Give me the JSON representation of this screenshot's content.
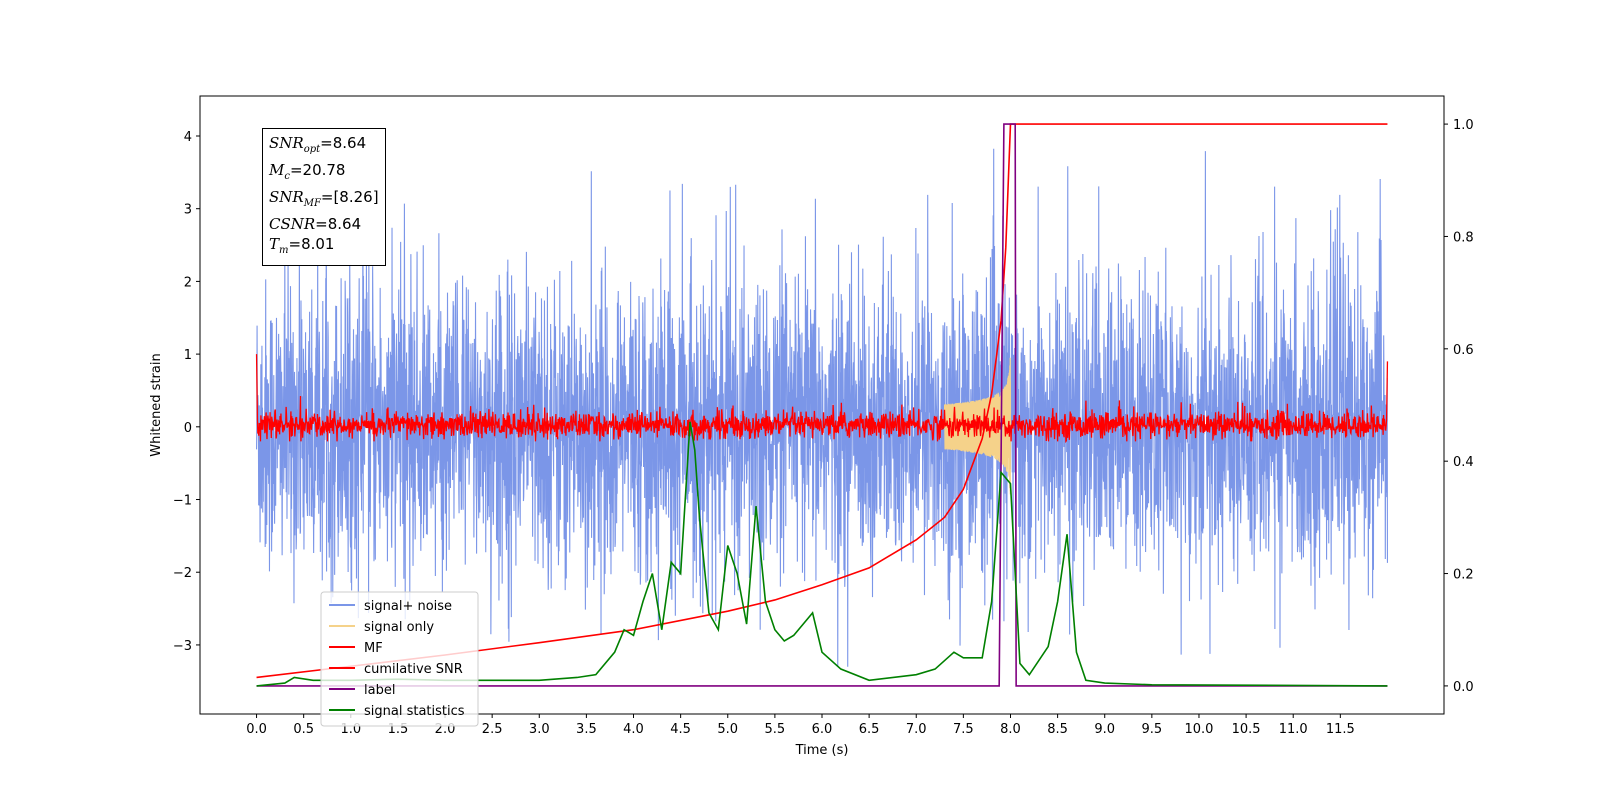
{
  "chart_data": {
    "type": "line",
    "xlabel": "Time (s)",
    "ylabel": "Whitened strain",
    "xlim": [
      -0.6,
      12.6
    ],
    "ylim_left": [
      -3.95,
      4.55
    ],
    "ylim_right": [
      -0.05,
      1.05
    ],
    "x_ticks": [
      "0.0",
      "0.5",
      "1.0",
      "1.5",
      "2.0",
      "2.5",
      "3.0",
      "3.5",
      "4.0",
      "4.5",
      "5.0",
      "5.5",
      "6.0",
      "6.5",
      "7.0",
      "7.5",
      "8.0",
      "8.5",
      "9.0",
      "9.5",
      "10.0",
      "10.5",
      "11.0",
      "11.5"
    ],
    "y_ticks_left": [
      "4",
      "3",
      "2",
      "1",
      "0",
      "−1",
      "−2",
      "−3"
    ],
    "y_ticks_right": [
      "1.0",
      "0.8",
      "0.6",
      "0.4",
      "0.2",
      "0.0"
    ],
    "annotations": [
      {
        "sym": "SNR",
        "sub": "opt",
        "val": "=8.64"
      },
      {
        "sym": "M",
        "sub": "c",
        "val": "=20.78"
      },
      {
        "sym": "SNR",
        "sub": "MF",
        "val": "=[8.26]"
      },
      {
        "sym": "CSNR",
        "sub": "",
        "val": "=8.64"
      },
      {
        "sym": "T",
        "sub": "m",
        "val": "=8.01"
      }
    ],
    "legend": {
      "location": "lower-left",
      "entries": [
        {
          "label": "signal+ noise",
          "color": "#7b96e8"
        },
        {
          "label": "signal only",
          "color": "#f5d28a"
        },
        {
          "label": "MF",
          "color": "#ff0000"
        },
        {
          "label": "cumilative SNR",
          "color": "#ff0000"
        },
        {
          "label": "label",
          "color": "#800080"
        },
        {
          "label": "signal statistics",
          "color": "#008000"
        }
      ]
    },
    "series": [
      {
        "name": "signal+ noise",
        "axis": "left",
        "color": "#7b96e8",
        "description_range": {
          "x": [
            0.0,
            12.0
          ],
          "y": [
            -3.3,
            4.2
          ]
        }
      },
      {
        "name": "signal only",
        "axis": "left",
        "color": "#f5d28a",
        "chirp": {
          "start": 7.3,
          "end": 8.0,
          "peak_amplitude": 1.0
        }
      },
      {
        "name": "MF",
        "axis": "left",
        "color": "#ff0000",
        "description_range": {
          "x": [
            0.0,
            12.0
          ],
          "y": [
            -0.2,
            0.4
          ]
        }
      },
      {
        "name": "cumilative SNR",
        "axis": "right",
        "color": "#ff0000",
        "x": [
          0.0,
          1.0,
          2.0,
          3.0,
          4.0,
          5.0,
          5.5,
          6.0,
          6.5,
          7.0,
          7.3,
          7.5,
          7.7,
          7.8,
          7.9,
          7.95,
          8.0,
          12.0
        ],
        "y": [
          0.015,
          0.035,
          0.055,
          0.077,
          0.1,
          0.133,
          0.153,
          0.18,
          0.21,
          0.26,
          0.3,
          0.35,
          0.44,
          0.52,
          0.65,
          0.78,
          1.0,
          1.0
        ]
      },
      {
        "name": "label",
        "axis": "right",
        "color": "#800080",
        "x": [
          0.0,
          7.88,
          7.93,
          8.05,
          8.06,
          12.0
        ],
        "y": [
          0.0,
          0.0,
          1.0,
          1.0,
          0.0,
          0.0
        ]
      },
      {
        "name": "signal statistics",
        "axis": "right",
        "color": "#008000",
        "x": [
          0.0,
          0.3,
          0.4,
          0.6,
          1.0,
          1.5,
          2.0,
          2.5,
          3.0,
          3.4,
          3.6,
          3.8,
          3.9,
          4.0,
          4.1,
          4.2,
          4.3,
          4.4,
          4.5,
          4.6,
          4.65,
          4.7,
          4.8,
          4.9,
          5.0,
          5.1,
          5.2,
          5.3,
          5.4,
          5.5,
          5.6,
          5.7,
          5.8,
          5.9,
          6.0,
          6.2,
          6.5,
          7.0,
          7.2,
          7.4,
          7.5,
          7.7,
          7.8,
          7.9,
          7.95,
          8.0,
          8.1,
          8.2,
          8.4,
          8.5,
          8.6,
          8.7,
          8.8,
          9.0,
          9.5,
          12.0
        ],
        "y": [
          0.0,
          0.005,
          0.015,
          0.01,
          0.01,
          0.012,
          0.01,
          0.01,
          0.01,
          0.015,
          0.02,
          0.06,
          0.1,
          0.09,
          0.15,
          0.2,
          0.1,
          0.22,
          0.2,
          0.47,
          0.42,
          0.3,
          0.13,
          0.1,
          0.25,
          0.2,
          0.11,
          0.32,
          0.15,
          0.1,
          0.08,
          0.09,
          0.11,
          0.13,
          0.06,
          0.03,
          0.01,
          0.02,
          0.03,
          0.06,
          0.05,
          0.05,
          0.15,
          0.38,
          0.37,
          0.36,
          0.04,
          0.02,
          0.07,
          0.15,
          0.27,
          0.06,
          0.01,
          0.005,
          0.002,
          0.0
        ]
      }
    ]
  }
}
